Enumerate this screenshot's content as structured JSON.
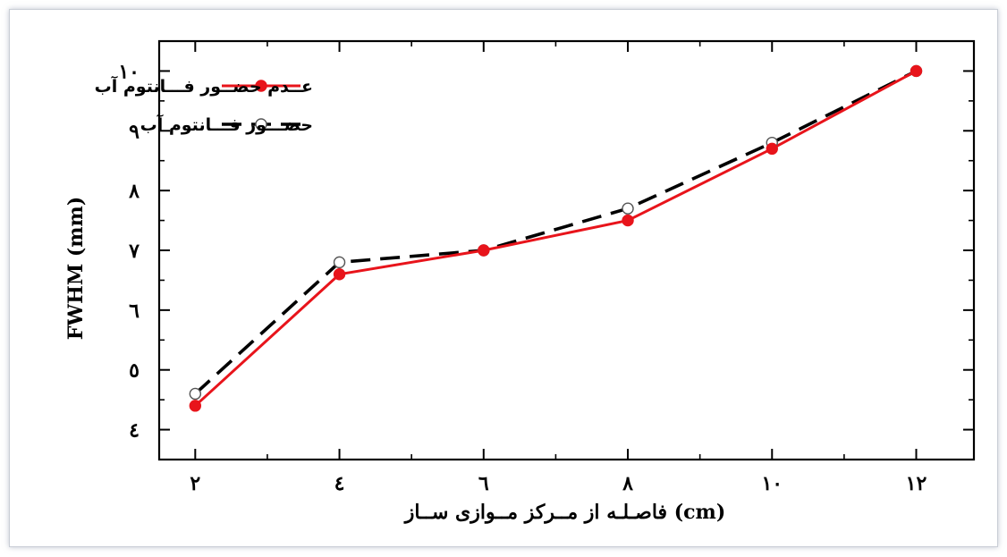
{
  "chart_data": {
    "type": "line",
    "x": [
      2,
      4,
      6,
      8,
      10,
      12
    ],
    "x_tick_labels": [
      "۲",
      "٤",
      "٦",
      "۸",
      "۱۰",
      "۱۲"
    ],
    "y_ticks": [
      4,
      5,
      6,
      7,
      8,
      9,
      10
    ],
    "y_tick_labels": [
      "٤",
      "٥",
      "٦",
      "٧",
      "۸",
      "۹",
      "۱۰"
    ],
    "xlim": [
      1.5,
      12.8
    ],
    "ylim": [
      3.5,
      10.5
    ],
    "xlabel": "فاصـلـه از مــرکز مــوازی ســاز (cm)",
    "ylabel": "FWHM (mm)",
    "grid": false,
    "legend_position": "top-left",
    "series": [
      {
        "name": "عــدم حضــور فـــانتوم آب",
        "values": [
          4.4,
          6.6,
          7.0,
          7.5,
          8.7,
          10.0
        ],
        "color": "#e8141b",
        "line_style": "solid",
        "marker": "filled-circle"
      },
      {
        "name": "حضـــور فـــانتوم آب",
        "values": [
          4.6,
          6.8,
          7.0,
          7.7,
          8.8,
          10.0
        ],
        "color": "#000000",
        "line_style": "dashed",
        "marker": "open-circle"
      }
    ]
  }
}
